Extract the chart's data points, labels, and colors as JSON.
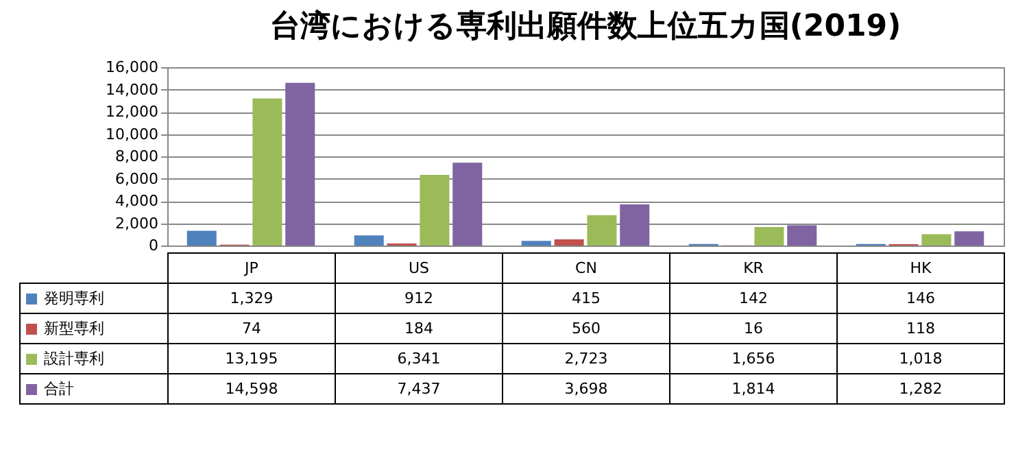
{
  "chart_data": {
    "type": "bar",
    "title": "台湾における専利出願件数上位五カ国(2019)",
    "categories": [
      "JP",
      "US",
      "CN",
      "KR",
      "HK"
    ],
    "series": [
      {
        "name": "発明専利",
        "color": "#4f81bd",
        "values": [
          1329,
          912,
          415,
          142,
          146
        ],
        "value_labels": [
          "1,329",
          "912",
          "415",
          "142",
          "146"
        ]
      },
      {
        "name": "新型専利",
        "color": "#c0504d",
        "values": [
          74,
          184,
          560,
          16,
          118
        ],
        "value_labels": [
          "74",
          "184",
          "560",
          "16",
          "118"
        ]
      },
      {
        "name": "設計専利",
        "color": "#9bbb59",
        "values": [
          13195,
          6341,
          2723,
          1656,
          1018
        ],
        "value_labels": [
          "13,195",
          "6,341",
          "2,723",
          "1,656",
          "1,018"
        ]
      },
      {
        "name": "合計",
        "color": "#8064a2",
        "values": [
          14598,
          7437,
          3698,
          1814,
          1282
        ],
        "value_labels": [
          "14,598",
          "7,437",
          "3,698",
          "1,814",
          "1,282"
        ]
      }
    ],
    "ylim": [
      0,
      16000
    ],
    "yticks": [
      {
        "value": 0,
        "label": "0"
      },
      {
        "value": 2000,
        "label": "2,000"
      },
      {
        "value": 4000,
        "label": "4,000"
      },
      {
        "value": 6000,
        "label": "6,000"
      },
      {
        "value": 8000,
        "label": "8,000"
      },
      {
        "value": 10000,
        "label": "10,000"
      },
      {
        "value": 12000,
        "label": "12,000"
      },
      {
        "value": 14000,
        "label": "14,000"
      },
      {
        "value": 16000,
        "label": "16,000"
      }
    ],
    "grid": true,
    "legend": "bottom left"
  }
}
